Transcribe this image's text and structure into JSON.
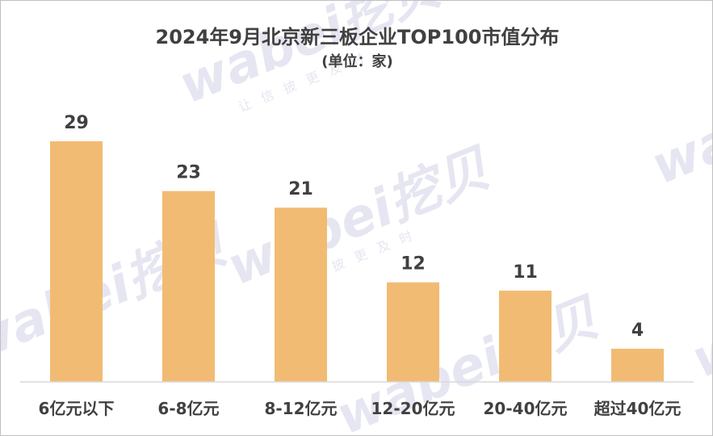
{
  "chart_data": {
    "type": "bar",
    "title": "2024年9月北京新三板企业TOP100市值分布",
    "subtitle": "(单位：家)",
    "categories": [
      "6亿元以下",
      "6-8亿元",
      "8-12亿元",
      "12-20亿元",
      "20-40亿元",
      "超过40亿元"
    ],
    "values": [
      29,
      23,
      21,
      12,
      11,
      4
    ],
    "ylim": [
      0,
      29
    ],
    "grid": false,
    "legend": "none",
    "bar_color": "#f2bb73",
    "axis_color": "#d9d9d9",
    "text_color": "#404040"
  },
  "watermark": {
    "brand": "wabei挖贝",
    "tagline": "让信披更及时"
  }
}
